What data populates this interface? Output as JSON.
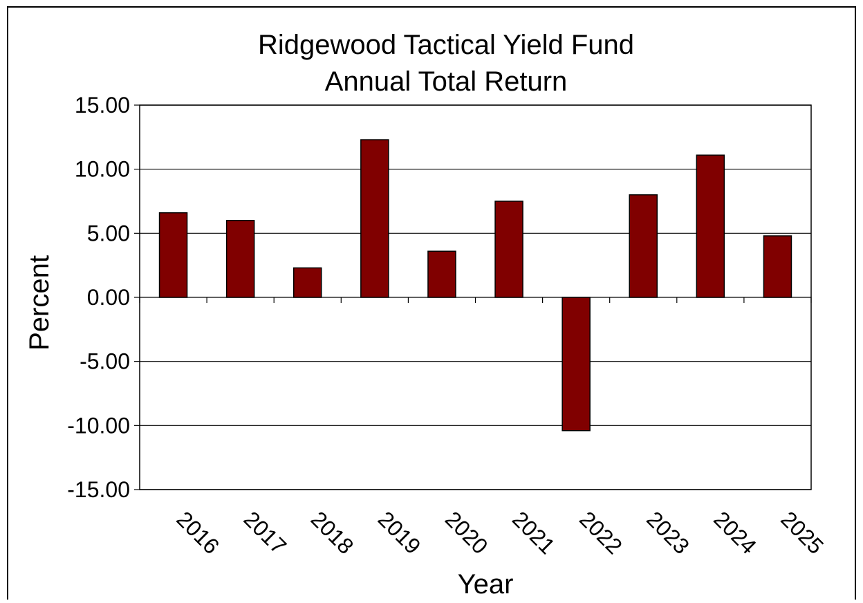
{
  "chart_data": {
    "type": "bar",
    "title": "Ridgewood Tactical Yield Fund",
    "subtitle": "Annual Total Return",
    "xlabel": "Year",
    "ylabel": "Percent",
    "categories": [
      "2016",
      "2017",
      "2018",
      "2019",
      "2020",
      "2021",
      "2022",
      "2023",
      "2024",
      "2025"
    ],
    "series": [
      {
        "values": [
          6.6,
          6.0,
          2.3,
          12.3,
          3.6,
          7.5,
          -10.4,
          8.0,
          11.1,
          4.8
        ]
      }
    ],
    "ylim": [
      -15,
      15
    ],
    "yticks": [
      "15.00",
      "10.00",
      "5.00",
      "0.00",
      "-5.00",
      "-10.00",
      "-15.00"
    ],
    "ytick_values": [
      15,
      10,
      5,
      0,
      -5,
      -10,
      -15
    ],
    "grid": true,
    "legend": "none",
    "colors": {
      "bar": "#800000",
      "bar_edge": "#000000",
      "grid": "#000000",
      "frame": "#000000"
    }
  }
}
